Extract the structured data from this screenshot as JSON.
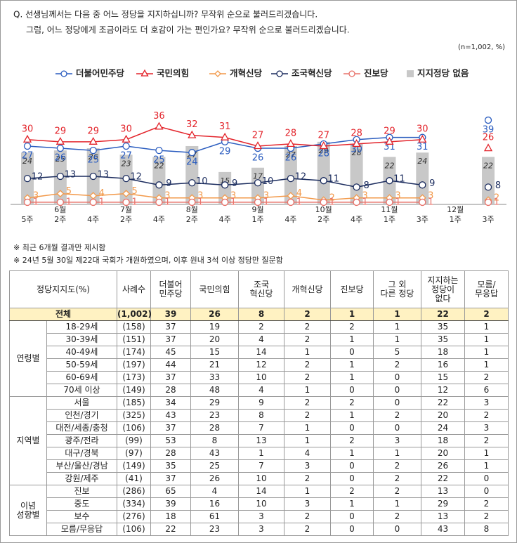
{
  "question": [
    "Q. 선생님께서는 다음 중 어느 정당을 지지하십니까? 무작위 순으로 불러드리겠습니다.",
    "그럼, 어느 정당에게 조금이라도 더 호감이 가는 편인가요? 무작위 순으로 불러드리겠습니다."
  ],
  "chart_data": {
    "type": "line",
    "note": "(n=1,002, %)",
    "months": [
      null,
      "6월",
      null,
      "7월",
      null,
      "8월",
      null,
      "9월",
      null,
      "10월",
      null,
      "11월",
      null,
      "12월",
      null
    ],
    "categories": [
      "5주",
      "2주",
      "4주",
      "2주",
      "4주",
      "2주",
      "4주",
      "1주",
      "4주",
      "2주",
      "4주",
      "1주",
      "3주",
      "1주",
      "3주"
    ],
    "ylim": [
      0,
      40
    ],
    "series": [
      {
        "name": "더불어민주당",
        "color": "#2a5cbf",
        "marker": "circle",
        "values": [
          27,
          26,
          25,
          27,
          25,
          24,
          29,
          26,
          26,
          28,
          30,
          31,
          31,
          null,
          39
        ]
      },
      {
        "name": "국민의힘",
        "color": "#e3242b",
        "marker": "triangle",
        "values": [
          30,
          29,
          29,
          30,
          36,
          32,
          31,
          27,
          28,
          27,
          28,
          29,
          30,
          null,
          26
        ]
      },
      {
        "name": "개혁신당",
        "color": "#f2994a",
        "marker": "diamond",
        "values": [
          3,
          5,
          4,
          5,
          3,
          3,
          3,
          3,
          4,
          2,
          3,
          3,
          3,
          null,
          2
        ]
      },
      {
        "name": "조국혁신당",
        "color": "#1b2c5e",
        "marker": "circle",
        "values": [
          12,
          13,
          13,
          12,
          9,
          10,
          9,
          10,
          12,
          11,
          8,
          11,
          9,
          null,
          8
        ]
      },
      {
        "name": "진보당",
        "color": "#e8736b",
        "marker": "circle",
        "values": [
          1,
          1,
          1,
          1,
          1,
          1,
          1,
          1,
          1,
          1,
          1,
          1,
          1,
          null,
          1
        ]
      },
      {
        "name": "지지정당 없음",
        "color": "#c8c8c8",
        "type": "bar",
        "values": [
          24,
          25,
          26,
          23,
          22,
          27,
          15,
          17,
          27,
          29,
          28,
          22,
          24,
          null,
          22
        ]
      }
    ]
  },
  "notes": [
    "※ 최근 6개월 결과만 제시함",
    "※ 24년 5월 30일 제22대 국회가 개원하였으며, 이후 원내 3석 이상 정당만 질문함"
  ],
  "table": {
    "header": [
      "정당지지도(%)",
      "사례수",
      "더불어\n민주당",
      "국민의힘",
      "조국\n혁신당",
      "개혁신당",
      "진보당",
      "그 외\n다른 정당",
      "지지하는\n정당이\n없다",
      "모름/\n무응답"
    ],
    "total": [
      "전체",
      "(1,002)",
      39,
      26,
      8,
      2,
      1,
      1,
      22,
      2
    ],
    "groups": [
      {
        "name": "연령별",
        "rows": [
          [
            "18-29세",
            "(158)",
            37,
            19,
            2,
            2,
            2,
            1,
            35,
            1
          ],
          [
            "30-39세",
            "(151)",
            37,
            20,
            4,
            2,
            1,
            1,
            35,
            1
          ],
          [
            "40-49세",
            "(174)",
            45,
            15,
            14,
            1,
            0,
            5,
            18,
            1
          ],
          [
            "50-59세",
            "(197)",
            44,
            21,
            12,
            2,
            1,
            2,
            16,
            1
          ],
          [
            "60-69세",
            "(173)",
            37,
            33,
            10,
            2,
            1,
            0,
            15,
            2
          ],
          [
            "70세 이상",
            "(149)",
            28,
            48,
            4,
            1,
            0,
            0,
            12,
            6
          ]
        ]
      },
      {
        "name": "지역별",
        "rows": [
          [
            "서울",
            "(185)",
            34,
            29,
            9,
            2,
            2,
            0,
            22,
            3
          ],
          [
            "인천/경기",
            "(325)",
            43,
            23,
            8,
            2,
            1,
            2,
            20,
            2
          ],
          [
            "대전/세종/충청",
            "(106)",
            37,
            28,
            7,
            1,
            0,
            0,
            24,
            3
          ],
          [
            "광주/전라",
            "(99)",
            53,
            8,
            13,
            1,
            2,
            3,
            18,
            2
          ],
          [
            "대구/경북",
            "(97)",
            28,
            43,
            1,
            4,
            1,
            1,
            20,
            1
          ],
          [
            "부산/울산/경남",
            "(149)",
            35,
            25,
            7,
            3,
            0,
            2,
            26,
            1
          ],
          [
            "강원/제주",
            "(41)",
            37,
            26,
            10,
            2,
            0,
            2,
            22,
            0
          ]
        ]
      },
      {
        "name": "이념\n성향별",
        "rows": [
          [
            "진보",
            "(286)",
            65,
            4,
            14,
            1,
            2,
            2,
            13,
            0
          ],
          [
            "중도",
            "(334)",
            39,
            16,
            10,
            3,
            1,
            1,
            29,
            2
          ],
          [
            "보수",
            "(276)",
            18,
            61,
            3,
            2,
            0,
            2,
            13,
            2
          ],
          [
            "모름/무응답",
            "(106)",
            22,
            23,
            3,
            2,
            0,
            0,
            43,
            8
          ]
        ]
      }
    ]
  }
}
